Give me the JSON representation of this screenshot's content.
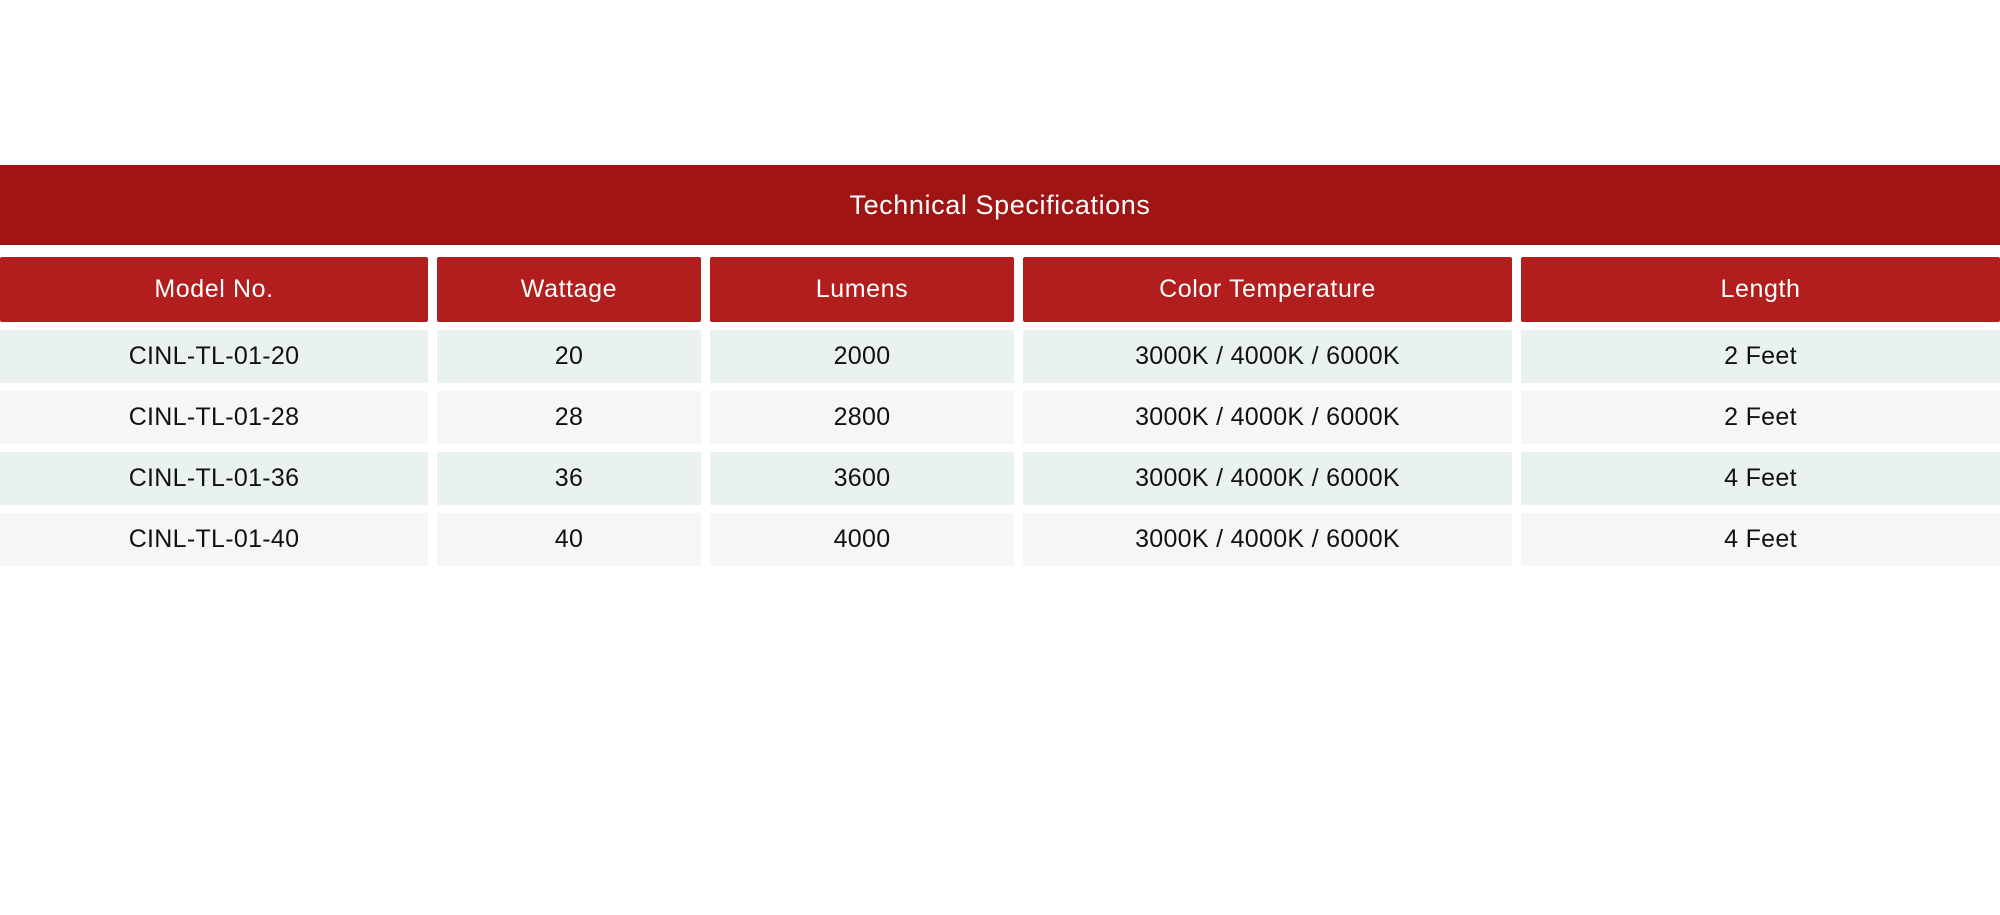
{
  "table": {
    "title": "Technical Specifications",
    "columns": [
      "Model No.",
      "Wattage",
      "Lumens",
      "Color Temperature",
      "Length"
    ],
    "rows": [
      [
        "CINL-TL-01-20",
        "20",
        "2000",
        "3000K / 4000K / 6000K",
        "2 Feet"
      ],
      [
        "CINL-TL-01-28",
        "28",
        "2800",
        "3000K / 4000K / 6000K",
        "2 Feet"
      ],
      [
        "CINL-TL-01-36",
        "36",
        "3600",
        "3000K / 4000K / 6000K",
        "4 Feet"
      ],
      [
        "CINL-TL-01-40",
        "40",
        "4000",
        "3000K / 4000K / 6000K",
        "4 Feet"
      ]
    ],
    "colors": {
      "title_bg": "#a11414",
      "header_bg": "#b21d1d",
      "header_text": "#ffffff",
      "row_odd_bg": "#e9f1f1",
      "row_even_bg": "#f6f6f6",
      "cell_text": "#111111"
    }
  }
}
